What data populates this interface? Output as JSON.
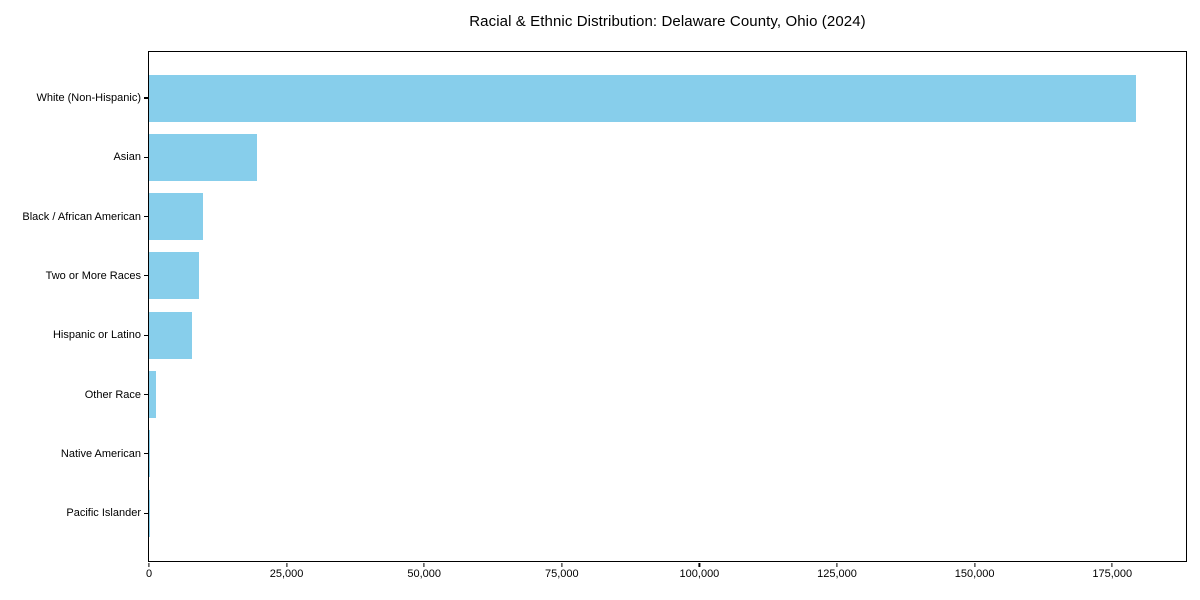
{
  "chart_data": {
    "type": "bar",
    "orientation": "horizontal",
    "title": "Racial & Ethnic Distribution: Delaware County, Ohio (2024)",
    "categories": [
      "White (Non-Hispanic)",
      "Asian",
      "Black / African American",
      "Two or More Races",
      "Hispanic or Latino",
      "Other Race",
      "Native American",
      "Pacific Islander"
    ],
    "values": [
      179300,
      19700,
      9900,
      9100,
      7900,
      1200,
      150,
      50
    ],
    "xlabel": "",
    "ylabel": "",
    "xlim": [
      0,
      188400
    ],
    "xticks": [
      0,
      25000,
      50000,
      75000,
      100000,
      125000,
      150000,
      175000
    ],
    "xtick_labels": [
      "0",
      "25,000",
      "50,000",
      "75,000",
      "100,000",
      "125,000",
      "150,000",
      "175,000"
    ],
    "grid": false,
    "legend": false,
    "bar_color": "#87CEEB",
    "axis_color": "#000000",
    "background_color": "#FFFFFF"
  }
}
